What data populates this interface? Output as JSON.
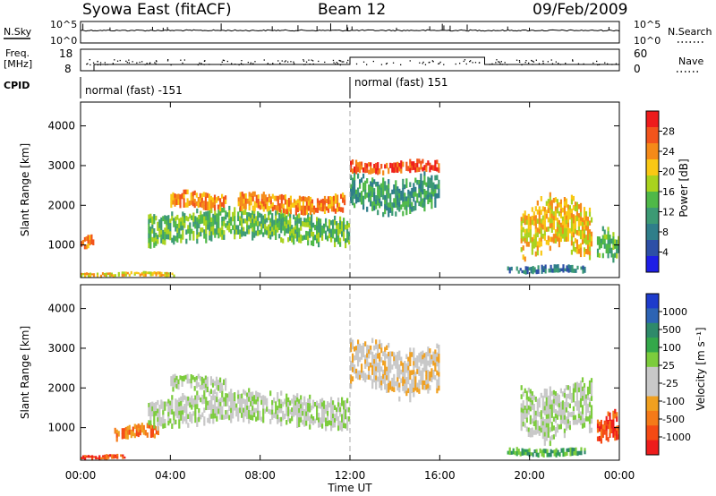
{
  "header": {
    "station": "Syowa East (fitACF)",
    "beam": "Beam 12",
    "date": "09/Feb/2009"
  },
  "noise_panel": {
    "left_label": "N.Sky",
    "right_label": "N.Search",
    "tick_top": "10^5",
    "tick_bottom": "10^0"
  },
  "freq_panel": {
    "left_label_1": "Freq.",
    "left_label_2": "[MHz]",
    "right_label": "Nave",
    "left_ticks": [
      "18",
      "8"
    ],
    "right_ticks": [
      "60",
      "0"
    ]
  },
  "cpid_panel": {
    "label": "CPID",
    "segments": [
      {
        "text": "normal (fast) -151",
        "start_hour": 0
      },
      {
        "text": "normal (fast) 151",
        "start_hour": 12
      }
    ]
  },
  "chart_data": [
    {
      "type": "heatmap",
      "panel": "power",
      "ylabel": "Slant Range [km]",
      "xlabel": "Time UT",
      "xlim": [
        0,
        24
      ],
      "ylim": [
        180,
        4600
      ],
      "x_ticks": [
        "00:00",
        "04:00",
        "08:00",
        "12:00",
        "16:00",
        "20:00",
        "00:00"
      ],
      "y_ticks": [
        1000,
        2000,
        3000,
        4000
      ],
      "colorbar": {
        "label": "Power [dB]",
        "ticks": [
          "28",
          "24",
          "20",
          "16",
          "12",
          "8",
          "4"
        ],
        "colors": [
          "#ee1c1c",
          "#f2541c",
          "#f58a18",
          "#f9c814",
          "#a9d21e",
          "#4fb848",
          "#3c9a74",
          "#2f7e8a",
          "#2d4fa6",
          "#1e1ee6"
        ]
      },
      "echo_bands": [
        {
          "t0": 0.0,
          "t1": 0.6,
          "r0": 900,
          "r1": 1300,
          "level": 2
        },
        {
          "t0": 0.0,
          "t1": 4.2,
          "r0": 200,
          "r1": 330,
          "level": 3
        },
        {
          "t0": 3.0,
          "t1": 12.0,
          "r0": 1000,
          "r1": 1900,
          "level": 5
        },
        {
          "t0": 4.0,
          "t1": 6.5,
          "r0": 1900,
          "r1": 2350,
          "level": 2
        },
        {
          "t0": 7.0,
          "t1": 11.8,
          "r0": 1800,
          "r1": 2300,
          "level": 2
        },
        {
          "t0": 12.0,
          "t1": 16.0,
          "r0": 1800,
          "r1": 2800,
          "level": 6
        },
        {
          "t0": 12.0,
          "t1": 16.0,
          "r0": 2800,
          "r1": 3150,
          "level": 1
        },
        {
          "t0": 19.0,
          "t1": 22.5,
          "r0": 280,
          "r1": 500,
          "level": 7
        },
        {
          "t0": 19.6,
          "t1": 22.8,
          "r0": 700,
          "r1": 2200,
          "level": 3
        },
        {
          "t0": 23.0,
          "t1": 24.0,
          "r0": 600,
          "r1": 1400,
          "level": 5
        }
      ]
    },
    {
      "type": "heatmap",
      "panel": "velocity",
      "ylabel": "Slant Range [km]",
      "xlabel": "Time UT",
      "xlim": [
        0,
        24
      ],
      "ylim": [
        180,
        4600
      ],
      "x_ticks": [
        "00:00",
        "04:00",
        "08:00",
        "12:00",
        "16:00",
        "20:00",
        "00:00"
      ],
      "y_ticks": [
        1000,
        2000,
        3000,
        4000
      ],
      "colorbar": {
        "label": "Velocity [m s⁻¹]",
        "ticks": [
          "1000",
          "500",
          "100",
          "25",
          "-25",
          "-100",
          "-500",
          "-1000"
        ],
        "colors": [
          "#1e3ccc",
          "#2d64b4",
          "#2e8a6a",
          "#34a84a",
          "#7ccc3c",
          "#c8c8c8",
          "#c8c8c8",
          "#f0a020",
          "#f57a18",
          "#f54a14",
          "#ee1c1c"
        ]
      },
      "echo_bands": [
        {
          "t0": 0.0,
          "t1": 2.0,
          "r0": 200,
          "r1": 330,
          "level": 9
        },
        {
          "t0": 1.5,
          "t1": 3.5,
          "r0": 700,
          "r1": 1100,
          "level": 8
        },
        {
          "t0": 3.0,
          "t1": 12.0,
          "r0": 1000,
          "r1": 1900,
          "level": 5
        },
        {
          "t0": 4.0,
          "t1": 6.5,
          "r0": 1900,
          "r1": 2350,
          "level": 5
        },
        {
          "t0": 12.0,
          "t1": 16.0,
          "r0": 1800,
          "r1": 3200,
          "level": 6
        },
        {
          "t0": 19.0,
          "t1": 22.5,
          "r0": 280,
          "r1": 500,
          "level": 3
        },
        {
          "t0": 19.6,
          "t1": 22.8,
          "r0": 700,
          "r1": 2200,
          "level": 5
        },
        {
          "t0": 23.0,
          "t1": 24.0,
          "r0": 600,
          "r1": 1400,
          "level": 9
        }
      ]
    }
  ]
}
